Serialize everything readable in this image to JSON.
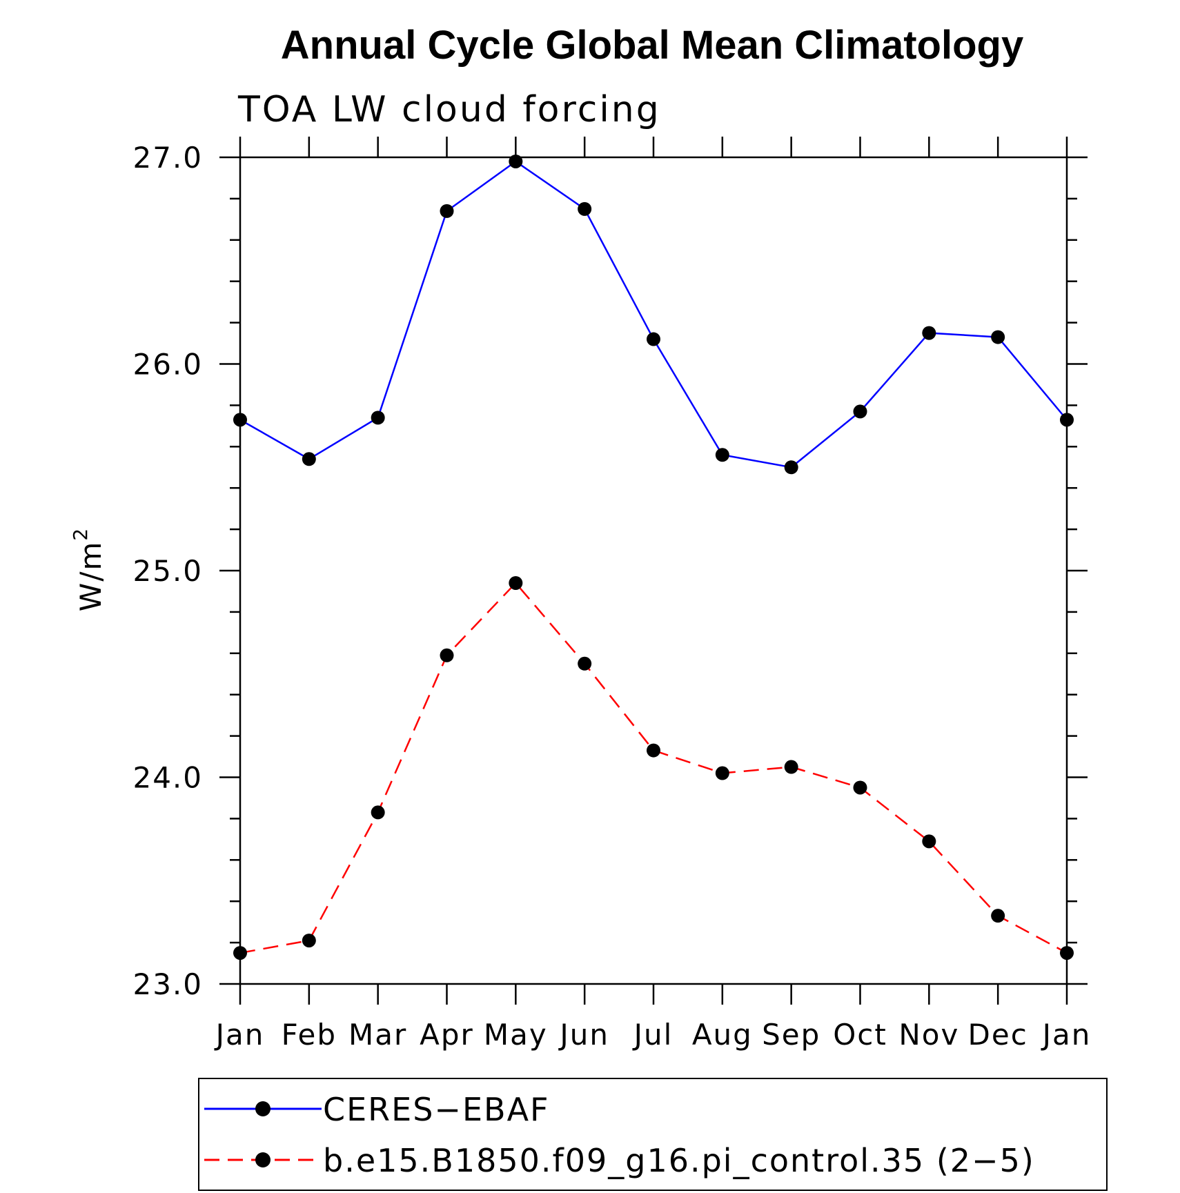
{
  "chart_data": {
    "type": "line",
    "title": "Annual Cycle Global Mean Climatology",
    "subtitle": "TOA LW cloud forcing",
    "ylabel": "W/m",
    "ylabel_superscript": "2",
    "ylim": [
      23.0,
      27.0
    ],
    "y_major_ticks": [
      23.0,
      24.0,
      25.0,
      26.0,
      27.0
    ],
    "y_tick_labels": [
      "23.0",
      "24.0",
      "25.0",
      "26.0",
      "27.0"
    ],
    "y_minor_step": 0.2,
    "categories": [
      "Jan",
      "Feb",
      "Mar",
      "Apr",
      "May",
      "Jun",
      "Jul",
      "Aug",
      "Sep",
      "Oct",
      "Nov",
      "Dec",
      "Jan"
    ],
    "grid": false,
    "legend_position": "bottom",
    "series": [
      {
        "name": "CERES−EBAF",
        "color": "#0000ff",
        "line_style": "solid",
        "marker": "filled-circle",
        "values": [
          25.73,
          25.54,
          25.74,
          26.74,
          26.98,
          26.75,
          26.12,
          25.56,
          25.5,
          25.77,
          26.15,
          26.13,
          25.73
        ]
      },
      {
        "name": "b.e15.B1850.f09_g16.pi_control.35 (2−5)",
        "color": "#ff0000",
        "line_style": "dashed",
        "marker": "filled-circle",
        "values": [
          23.15,
          23.21,
          23.83,
          24.59,
          24.94,
          24.55,
          24.13,
          24.02,
          24.05,
          23.95,
          23.69,
          23.33,
          23.15
        ]
      }
    ]
  }
}
